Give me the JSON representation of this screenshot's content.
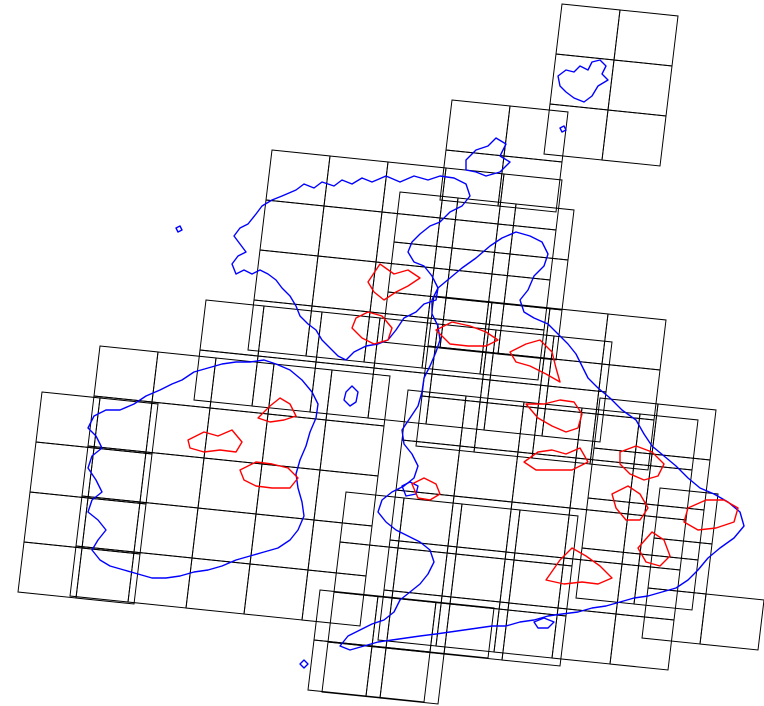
{
  "colors": {
    "background": "#ffffff",
    "tile_outline": "#000000",
    "coastline": "#0000ff",
    "highlight_regions": "#ff0000"
  },
  "layers": [
    {
      "name": "tile-grid",
      "color": "#000000"
    },
    {
      "name": "coastline",
      "color": "#0000ff"
    },
    {
      "name": "highlight-regions",
      "color": "#ff0000"
    }
  ]
}
